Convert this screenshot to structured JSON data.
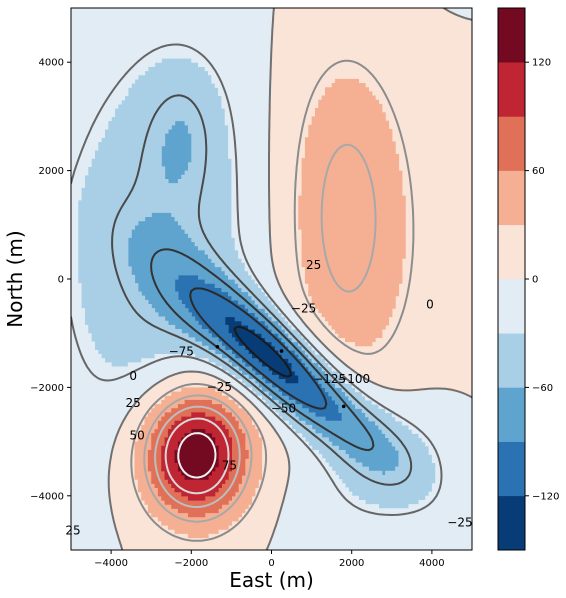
{
  "chart_data": {
    "type": "contour",
    "title": "",
    "xlabel": "East (m)",
    "ylabel": "North (m)",
    "xlim": [
      -5000,
      5000
    ],
    "ylim": [
      -5000,
      5000
    ],
    "xticks": [
      -4000,
      -2000,
      0,
      2000,
      4000
    ],
    "yticks": [
      -4000,
      -2000,
      0,
      2000,
      4000
    ],
    "xtick_labels": [
      "−4000",
      "−2000",
      "0",
      "2000",
      "4000"
    ],
    "ytick_labels": [
      "−4000",
      "−2000",
      "0",
      "2000",
      "4000"
    ],
    "grid": false,
    "filled_levels": [
      -150,
      -120,
      -90,
      -60,
      -30,
      0,
      30,
      60,
      90,
      120,
      150
    ],
    "level_colors": [
      "#083c77",
      "#2b72b3",
      "#5fa3cf",
      "#a9cfe6",
      "#e2ecf5",
      "#fae4d8",
      "#f5b094",
      "#e07158",
      "#bf2532",
      "#730a21"
    ],
    "colorbar": {
      "ticks": [
        -120,
        -60,
        0,
        60,
        120
      ],
      "tick_labels": [
        "−120",
        "−60",
        "0",
        "60",
        "120"
      ]
    },
    "contour_labels": [
      {
        "text": "25",
        "x": 1050,
        "y": 250
      },
      {
        "text": "−25",
        "x": 800,
        "y": -550
      },
      {
        "text": "0",
        "x": 3950,
        "y": -480
      },
      {
        "text": "−75",
        "x": -2250,
        "y": -1350
      },
      {
        "text": "−100",
        "x": 2050,
        "y": -1850
      },
      {
        "text": "−125",
        "x": 1450,
        "y": -1850
      },
      {
        "text": "−25",
        "x": -1300,
        "y": -2000
      },
      {
        "text": "0",
        "x": -3450,
        "y": -1800
      },
      {
        "text": "−50",
        "x": 300,
        "y": -2400
      },
      {
        "text": "25",
        "x": -3450,
        "y": -2300
      },
      {
        "text": "50",
        "x": -3350,
        "y": -2900
      },
      {
        "text": "75",
        "x": -1050,
        "y": -3450
      },
      {
        "text": "25",
        "x": -4950,
        "y": -4650
      },
      {
        "text": "−25",
        "x": 4700,
        "y": -4500
      }
    ]
  }
}
